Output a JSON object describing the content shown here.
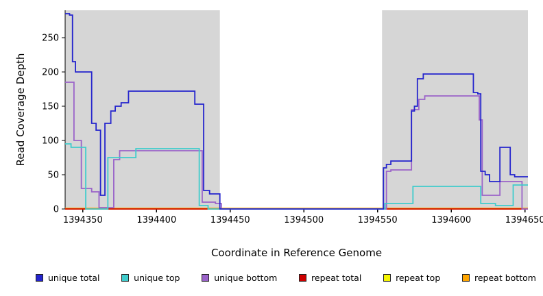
{
  "chart_data": {
    "type": "line",
    "step": true,
    "title": "",
    "xlabel": "Coordinate in Reference Genome",
    "ylabel": "Read Coverage Depth",
    "xlim": [
      1394338,
      1394652
    ],
    "ylim": [
      0,
      290
    ],
    "x_ticks": [
      1394350,
      1394400,
      1394450,
      1394500,
      1394550,
      1394600,
      1394650
    ],
    "y_ticks": [
      0,
      50,
      100,
      150,
      200,
      250
    ],
    "grid": false,
    "legend_position": "bottom",
    "shaded_regions": [
      {
        "x0": 1394338,
        "x1": 1394443,
        "color": "#d6d6d6"
      },
      {
        "x0": 1394553,
        "x1": 1394652,
        "color": "#d6d6d6"
      }
    ],
    "series": [
      {
        "name": "unique total",
        "color": "#2424CD",
        "points": [
          [
            1394338,
            285
          ],
          [
            1394341,
            283
          ],
          [
            1394343,
            215
          ],
          [
            1394345,
            200
          ],
          [
            1394356,
            125
          ],
          [
            1394359,
            115
          ],
          [
            1394362,
            20
          ],
          [
            1394365,
            125
          ],
          [
            1394369,
            143
          ],
          [
            1394372,
            150
          ],
          [
            1394376,
            155
          ],
          [
            1394381,
            172
          ],
          [
            1394424,
            172
          ],
          [
            1394426,
            153
          ],
          [
            1394432,
            27
          ],
          [
            1394436,
            22
          ],
          [
            1394443,
            0
          ],
          [
            1394554,
            60
          ],
          [
            1394556,
            65
          ],
          [
            1394559,
            70
          ],
          [
            1394571,
            70
          ],
          [
            1394573,
            143
          ],
          [
            1394575,
            150
          ],
          [
            1394577,
            190
          ],
          [
            1394581,
            197
          ],
          [
            1394612,
            197
          ],
          [
            1394615,
            170
          ],
          [
            1394618,
            168
          ],
          [
            1394620,
            55
          ],
          [
            1394623,
            50
          ],
          [
            1394626,
            40
          ],
          [
            1394631,
            40
          ],
          [
            1394633,
            90
          ],
          [
            1394638,
            90
          ],
          [
            1394640,
            50
          ],
          [
            1394643,
            47
          ]
        ]
      },
      {
        "name": "unique top",
        "color": "#3FCCCC",
        "points": [
          [
            1394338,
            95
          ],
          [
            1394342,
            90
          ],
          [
            1394352,
            0
          ],
          [
            1394367,
            75
          ],
          [
            1394386,
            88
          ],
          [
            1394429,
            5
          ],
          [
            1394435,
            0
          ],
          [
            1394555,
            8
          ],
          [
            1394574,
            33
          ],
          [
            1394620,
            8
          ],
          [
            1394630,
            5
          ],
          [
            1394642,
            35
          ]
        ]
      },
      {
        "name": "unique bottom",
        "color": "#9A63C9",
        "points": [
          [
            1394338,
            185
          ],
          [
            1394344,
            100
          ],
          [
            1394349,
            30
          ],
          [
            1394356,
            25
          ],
          [
            1394361,
            2
          ],
          [
            1394371,
            72
          ],
          [
            1394375,
            85
          ],
          [
            1394428,
            85
          ],
          [
            1394431,
            10
          ],
          [
            1394440,
            8
          ],
          [
            1394444,
            0
          ],
          [
            1394556,
            55
          ],
          [
            1394559,
            57
          ],
          [
            1394573,
            145
          ],
          [
            1394578,
            160
          ],
          [
            1394582,
            165
          ],
          [
            1394617,
            165
          ],
          [
            1394619,
            130
          ],
          [
            1394621,
            20
          ],
          [
            1394631,
            20
          ],
          [
            1394633,
            40
          ],
          [
            1394648,
            0
          ]
        ]
      },
      {
        "name": "repeat total",
        "color": "#CC0000",
        "points": [
          [
            1394338,
            0
          ]
        ]
      },
      {
        "name": "repeat top",
        "color": "#F5F500",
        "points": [
          [
            1394338,
            0
          ]
        ]
      },
      {
        "name": "repeat bottom",
        "color": "#FFA500",
        "points": [
          [
            1394338,
            1
          ]
        ]
      }
    ]
  }
}
